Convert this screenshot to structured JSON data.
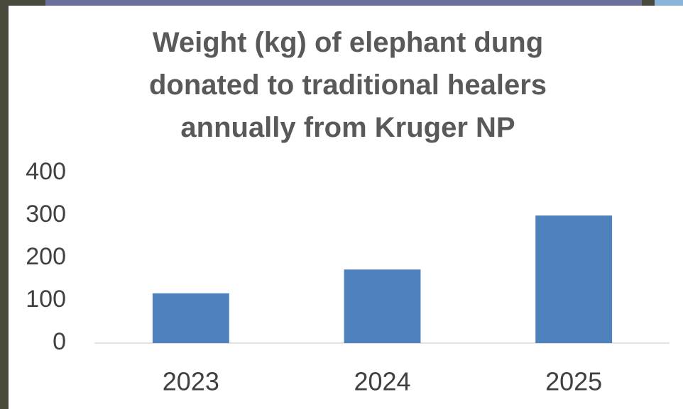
{
  "chart_data": {
    "type": "bar",
    "title": "Weight (kg) of elephant dung donated to traditional healers annually from Kruger NP",
    "categories": [
      "2023",
      "2024",
      "2025"
    ],
    "values": [
      117,
      173,
      300
    ],
    "color": "#4f81bd",
    "ylim": [
      0,
      400
    ],
    "yticks": [
      0,
      100,
      200,
      300,
      400
    ],
    "grid": false
  }
}
